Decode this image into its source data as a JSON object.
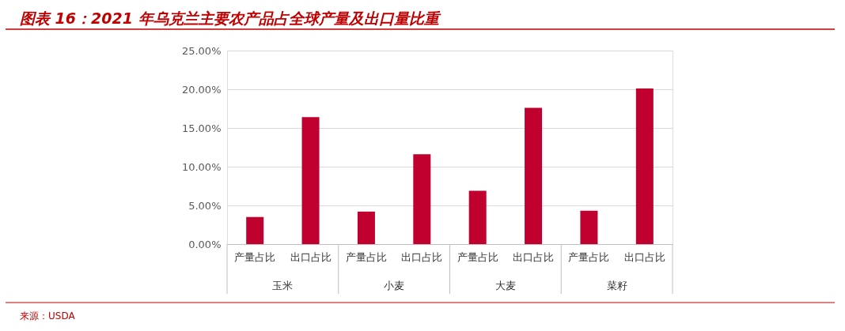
{
  "chart_data": {
    "type": "bar",
    "title": "图表 16：2021 年乌克兰主要农产品占全球产量及出口量比重",
    "categories": [
      "产量占比",
      "出口占比",
      "产量占比",
      "出口占比",
      "产量占比",
      "出口占比",
      "产量占比",
      "出口占比"
    ],
    "values": [
      3.5,
      16.4,
      4.2,
      11.6,
      6.9,
      17.6,
      4.3,
      20.1
    ],
    "color": "#c0002f",
    "ylim": [
      0,
      25
    ],
    "yticks": [
      {
        "value": 0,
        "label": "0.00%"
      },
      {
        "value": 5,
        "label": "5.00%"
      },
      {
        "value": 10,
        "label": "10.00%"
      },
      {
        "value": 15,
        "label": "15.00%"
      },
      {
        "value": 20,
        "label": "20.00%"
      },
      {
        "value": 25,
        "label": "25.00%"
      }
    ],
    "grid": "y",
    "annotations": [
      "玉米",
      "小麦",
      "大麦",
      "菜籽",
      "来源：USDA"
    ]
  }
}
